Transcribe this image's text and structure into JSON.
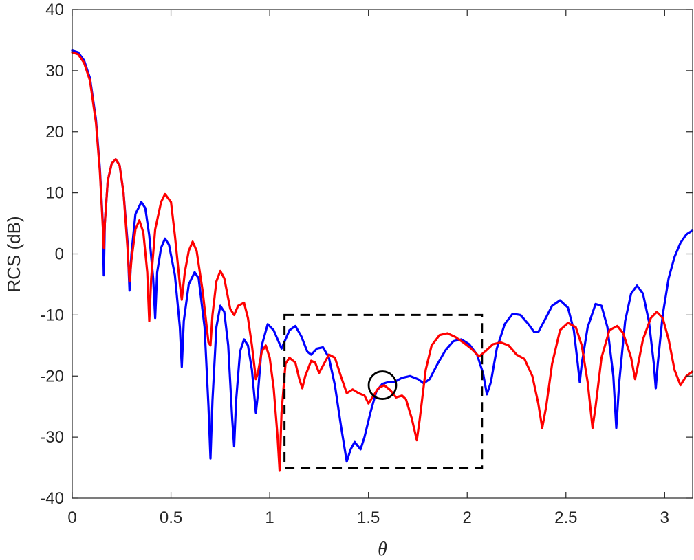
{
  "chart_data": {
    "type": "line",
    "xlabel": "θ",
    "ylabel": "RCS (dB)",
    "xlim": [
      0,
      3.1416
    ],
    "ylim": [
      -40,
      40
    ],
    "xticks": [
      0,
      0.5,
      1,
      1.5,
      2,
      2.5,
      3
    ],
    "xtick_labels": [
      "0",
      "0.5",
      "1",
      "1.5",
      "2",
      "2.5",
      "3"
    ],
    "yticks": [
      -40,
      -30,
      -20,
      -10,
      0,
      10,
      20,
      30,
      40
    ],
    "ytick_labels": [
      "-40",
      "-30",
      "-20",
      "-10",
      "0",
      "10",
      "20",
      "30",
      "40"
    ],
    "grid": false,
    "series": [
      {
        "color": "#0000ff",
        "points": [
          [
            0,
            33.3
          ],
          [
            0.03,
            33
          ],
          [
            0.06,
            31.7
          ],
          [
            0.09,
            28.8
          ],
          [
            0.12,
            22
          ],
          [
            0.14,
            14
          ],
          [
            0.155,
            5
          ],
          [
            0.16,
            -3.5
          ],
          [
            0.165,
            5
          ],
          [
            0.18,
            12
          ],
          [
            0.2,
            14.8
          ],
          [
            0.22,
            15.5
          ],
          [
            0.24,
            14.5
          ],
          [
            0.26,
            10
          ],
          [
            0.28,
            2
          ],
          [
            0.29,
            -6
          ],
          [
            0.3,
            0
          ],
          [
            0.32,
            6.5
          ],
          [
            0.35,
            8.5
          ],
          [
            0.37,
            7.5
          ],
          [
            0.39,
            3
          ],
          [
            0.41,
            -4
          ],
          [
            0.42,
            -10.5
          ],
          [
            0.43,
            -3
          ],
          [
            0.45,
            1
          ],
          [
            0.47,
            2.5
          ],
          [
            0.49,
            1.5
          ],
          [
            0.52,
            -3.5
          ],
          [
            0.545,
            -12
          ],
          [
            0.555,
            -18.5
          ],
          [
            0.565,
            -11
          ],
          [
            0.59,
            -5
          ],
          [
            0.62,
            -3
          ],
          [
            0.64,
            -4
          ],
          [
            0.67,
            -12
          ],
          [
            0.69,
            -25
          ],
          [
            0.7,
            -33.5
          ],
          [
            0.71,
            -24
          ],
          [
            0.73,
            -12
          ],
          [
            0.75,
            -8.5
          ],
          [
            0.77,
            -9.5
          ],
          [
            0.79,
            -15
          ],
          [
            0.81,
            -27
          ],
          [
            0.82,
            -31.5
          ],
          [
            0.83,
            -24
          ],
          [
            0.85,
            -16
          ],
          [
            0.87,
            -14
          ],
          [
            0.89,
            -15
          ],
          [
            0.91,
            -19
          ],
          [
            0.93,
            -26
          ],
          [
            0.94,
            -23
          ],
          [
            0.96,
            -15
          ],
          [
            0.99,
            -11.5
          ],
          [
            1.02,
            -12.5
          ],
          [
            1.04,
            -14
          ],
          [
            1.06,
            -15.5
          ],
          [
            1.08,
            -14
          ],
          [
            1.1,
            -12.5
          ],
          [
            1.13,
            -11.8
          ],
          [
            1.16,
            -13.5
          ],
          [
            1.19,
            -16
          ],
          [
            1.21,
            -16.5
          ],
          [
            1.24,
            -15.5
          ],
          [
            1.27,
            -15.3
          ],
          [
            1.3,
            -17
          ],
          [
            1.33,
            -21.5
          ],
          [
            1.36,
            -28
          ],
          [
            1.39,
            -34
          ],
          [
            1.41,
            -32
          ],
          [
            1.43,
            -30.8
          ],
          [
            1.46,
            -32
          ],
          [
            1.48,
            -30
          ],
          [
            1.51,
            -26
          ],
          [
            1.54,
            -22.5
          ],
          [
            1.57,
            -21.3
          ],
          [
            1.6,
            -21
          ],
          [
            1.63,
            -21
          ],
          [
            1.67,
            -20.3
          ],
          [
            1.71,
            -20
          ],
          [
            1.75,
            -20.5
          ],
          [
            1.78,
            -21.2
          ],
          [
            1.81,
            -20.5
          ],
          [
            1.85,
            -18
          ],
          [
            1.89,
            -15.8
          ],
          [
            1.93,
            -14.3
          ],
          [
            1.97,
            -14
          ],
          [
            2.01,
            -14.8
          ],
          [
            2.05,
            -16.5
          ],
          [
            2.08,
            -19.5
          ],
          [
            2.1,
            -23
          ],
          [
            2.12,
            -21
          ],
          [
            2.15,
            -15.5
          ],
          [
            2.19,
            -11.5
          ],
          [
            2.23,
            -9.8
          ],
          [
            2.27,
            -10
          ],
          [
            2.31,
            -11.5
          ],
          [
            2.34,
            -12.8
          ],
          [
            2.36,
            -12.8
          ],
          [
            2.39,
            -11
          ],
          [
            2.43,
            -8.5
          ],
          [
            2.47,
            -7.6
          ],
          [
            2.51,
            -8.8
          ],
          [
            2.54,
            -12.5
          ],
          [
            2.56,
            -18
          ],
          [
            2.57,
            -21
          ],
          [
            2.58,
            -18
          ],
          [
            2.61,
            -12
          ],
          [
            2.65,
            -8.2
          ],
          [
            2.68,
            -8.5
          ],
          [
            2.71,
            -12
          ],
          [
            2.74,
            -20
          ],
          [
            2.755,
            -28.5
          ],
          [
            2.77,
            -21
          ],
          [
            2.8,
            -11
          ],
          [
            2.83,
            -6.5
          ],
          [
            2.86,
            -5.2
          ],
          [
            2.89,
            -6.5
          ],
          [
            2.92,
            -11
          ],
          [
            2.945,
            -18
          ],
          [
            2.955,
            -22
          ],
          [
            2.965,
            -18
          ],
          [
            2.99,
            -10
          ],
          [
            3.02,
            -4
          ],
          [
            3.05,
            -0.5
          ],
          [
            3.08,
            1.8
          ],
          [
            3.11,
            3.2
          ],
          [
            3.14,
            3.8
          ]
        ]
      },
      {
        "color": "#ff0000",
        "points": [
          [
            0,
            33
          ],
          [
            0.03,
            32.7
          ],
          [
            0.06,
            31.3
          ],
          [
            0.09,
            28.4
          ],
          [
            0.12,
            21.5
          ],
          [
            0.14,
            13.5
          ],
          [
            0.155,
            4.5
          ],
          [
            0.16,
            1
          ],
          [
            0.165,
            5
          ],
          [
            0.18,
            12
          ],
          [
            0.2,
            14.8
          ],
          [
            0.22,
            15.5
          ],
          [
            0.24,
            14.5
          ],
          [
            0.26,
            10
          ],
          [
            0.28,
            1
          ],
          [
            0.29,
            -4.5
          ],
          [
            0.3,
            -1
          ],
          [
            0.32,
            4
          ],
          [
            0.34,
            5.5
          ],
          [
            0.36,
            3.5
          ],
          [
            0.38,
            -3
          ],
          [
            0.39,
            -11
          ],
          [
            0.4,
            -4
          ],
          [
            0.42,
            4
          ],
          [
            0.45,
            8.5
          ],
          [
            0.47,
            9.8
          ],
          [
            0.5,
            8.5
          ],
          [
            0.52,
            3
          ],
          [
            0.545,
            -5
          ],
          [
            0.555,
            -7.5
          ],
          [
            0.57,
            -3
          ],
          [
            0.59,
            0.5
          ],
          [
            0.61,
            2
          ],
          [
            0.63,
            0.5
          ],
          [
            0.66,
            -6
          ],
          [
            0.69,
            -14.5
          ],
          [
            0.7,
            -15
          ],
          [
            0.71,
            -10
          ],
          [
            0.73,
            -4.5
          ],
          [
            0.75,
            -2.8
          ],
          [
            0.77,
            -4
          ],
          [
            0.8,
            -9
          ],
          [
            0.82,
            -10
          ],
          [
            0.84,
            -8.5
          ],
          [
            0.87,
            -8
          ],
          [
            0.89,
            -10.5
          ],
          [
            0.91,
            -15
          ],
          [
            0.93,
            -20.5
          ],
          [
            0.94,
            -19.5
          ],
          [
            0.96,
            -16
          ],
          [
            0.98,
            -15
          ],
          [
            1.0,
            -17
          ],
          [
            1.02,
            -22
          ],
          [
            1.04,
            -30
          ],
          [
            1.05,
            -35.5
          ],
          [
            1.06,
            -26
          ],
          [
            1.08,
            -18
          ],
          [
            1.1,
            -17
          ],
          [
            1.13,
            -17.8
          ],
          [
            1.15,
            -20.5
          ],
          [
            1.165,
            -22
          ],
          [
            1.18,
            -20
          ],
          [
            1.21,
            -17.5
          ],
          [
            1.23,
            -17.8
          ],
          [
            1.25,
            -19.5
          ],
          [
            1.27,
            -18.3
          ],
          [
            1.3,
            -16.5
          ],
          [
            1.33,
            -17
          ],
          [
            1.36,
            -20
          ],
          [
            1.39,
            -22.8
          ],
          [
            1.42,
            -22.2
          ],
          [
            1.45,
            -22.8
          ],
          [
            1.48,
            -23.2
          ],
          [
            1.5,
            -24.5
          ],
          [
            1.52,
            -23.5
          ],
          [
            1.55,
            -22
          ],
          [
            1.58,
            -21.5
          ],
          [
            1.61,
            -22.3
          ],
          [
            1.64,
            -23.5
          ],
          [
            1.67,
            -23.2
          ],
          [
            1.69,
            -23.8
          ],
          [
            1.72,
            -27
          ],
          [
            1.745,
            -30.5
          ],
          [
            1.76,
            -27
          ],
          [
            1.79,
            -19
          ],
          [
            1.82,
            -15
          ],
          [
            1.86,
            -13.3
          ],
          [
            1.9,
            -13
          ],
          [
            1.94,
            -13.6
          ],
          [
            1.98,
            -14.5
          ],
          [
            2.02,
            -15.5
          ],
          [
            2.06,
            -16.8
          ],
          [
            2.09,
            -16
          ],
          [
            2.13,
            -14.8
          ],
          [
            2.17,
            -14.5
          ],
          [
            2.21,
            -15
          ],
          [
            2.25,
            -16.5
          ],
          [
            2.29,
            -17.2
          ],
          [
            2.33,
            -20
          ],
          [
            2.36,
            -24.5
          ],
          [
            2.38,
            -28.5
          ],
          [
            2.4,
            -25
          ],
          [
            2.43,
            -18
          ],
          [
            2.47,
            -12.5
          ],
          [
            2.51,
            -11.3
          ],
          [
            2.55,
            -12
          ],
          [
            2.58,
            -15
          ],
          [
            2.61,
            -21
          ],
          [
            2.635,
            -28.5
          ],
          [
            2.65,
            -25
          ],
          [
            2.68,
            -17
          ],
          [
            2.72,
            -12.5
          ],
          [
            2.76,
            -11.8
          ],
          [
            2.79,
            -13
          ],
          [
            2.83,
            -17
          ],
          [
            2.85,
            -20.5
          ],
          [
            2.86,
            -19
          ],
          [
            2.89,
            -14
          ],
          [
            2.93,
            -10.5
          ],
          [
            2.96,
            -9.5
          ],
          [
            2.99,
            -10.5
          ],
          [
            3.02,
            -14
          ],
          [
            3.05,
            -19
          ],
          [
            3.08,
            -21.5
          ],
          [
            3.11,
            -20
          ],
          [
            3.14,
            -19.3
          ]
        ]
      }
    ],
    "annotations": [
      {
        "type": "dashed-rectangle",
        "x": [
          1.075,
          2.075
        ],
        "y": [
          -35,
          -10
        ],
        "color": "#000000"
      },
      {
        "type": "circle-marker",
        "x": 1.5708,
        "y": -21.5,
        "color": "#000000"
      }
    ]
  }
}
